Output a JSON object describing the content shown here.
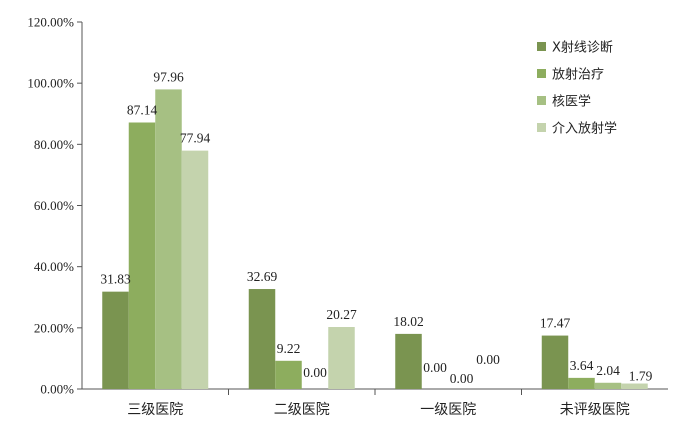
{
  "chart_data": {
    "type": "bar",
    "title": "",
    "xlabel": "",
    "ylabel": "",
    "categories": [
      "三级医院",
      "二级医院",
      "一级医院",
      "未评级医院"
    ],
    "ylim": [
      0,
      120
    ],
    "yticks": [
      0,
      20,
      40,
      60,
      80,
      100,
      120
    ],
    "ytick_labels": [
      "0.00%",
      "20.00%",
      "40.00%",
      "60.00%",
      "80.00%",
      "100.00%",
      "120.00%"
    ],
    "legend_position": "right",
    "grid": false,
    "series": [
      {
        "name": "X射线诊断",
        "color": "#7a9450",
        "values": [
          31.83,
          32.69,
          18.02,
          17.47
        ],
        "labels": [
          "31.83",
          "32.69",
          "18.02",
          "17.47"
        ]
      },
      {
        "name": "放射治疗",
        "color": "#8dad5e",
        "values": [
          87.14,
          9.22,
          0.0,
          3.64
        ],
        "labels": [
          "87.14",
          "9.22",
          "0.00",
          "3.64"
        ]
      },
      {
        "name": "核医学",
        "color": "#a6c083",
        "values": [
          97.96,
          0.0,
          0.0,
          2.04
        ],
        "labels": [
          "97.96",
          "0.00",
          "0.00",
          "2.04"
        ]
      },
      {
        "name": "介入放射学",
        "color": "#c4d3ad",
        "values": [
          77.94,
          20.27,
          0.0,
          1.79
        ],
        "labels": [
          "77.94",
          "20.27",
          "0.00",
          "1.79"
        ]
      }
    ]
  }
}
